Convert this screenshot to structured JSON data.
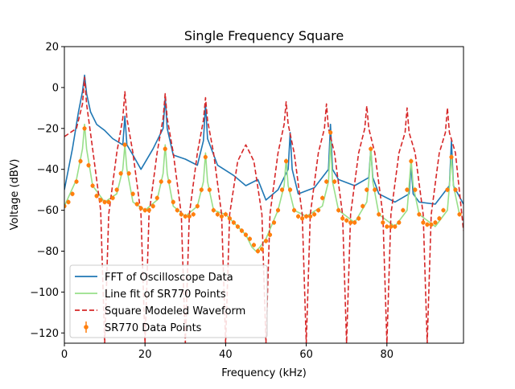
{
  "chart_data": {
    "type": "line",
    "title": "Single Frequency Square",
    "xlabel": "Frequency (kHz)",
    "ylabel": "Voltage (dBV)",
    "xlim": [
      0,
      99
    ],
    "ylim": [
      -125,
      20
    ],
    "x_ticks": [
      0,
      20,
      40,
      60,
      80
    ],
    "x_tick_labels": [
      "0",
      "20",
      "40",
      "60",
      "80"
    ],
    "y_ticks": [
      20,
      0,
      -20,
      -40,
      -60,
      -80,
      -100,
      -120
    ],
    "y_tick_labels": [
      "20",
      "0",
      "−20",
      "−40",
      "−60",
      "−80",
      "−100",
      "−120"
    ],
    "grid": false,
    "legend_position": "lower-left",
    "legend": [
      {
        "label": "FFT of Oscilloscope Data",
        "style": "line",
        "color": "#1f77b4"
      },
      {
        "label": "Line fit of SR770 Points",
        "style": "line",
        "color": "#98df8a"
      },
      {
        "label": "Square Modeled Waveform",
        "style": "dashed",
        "color": "#d62728"
      },
      {
        "label": "SR770 Data Points",
        "style": "errorbar-marker",
        "color": "#ff7f0e"
      }
    ],
    "series": [
      {
        "name": "FFT of Oscilloscope Data",
        "color": "#1f77b4",
        "x": [
          0,
          2,
          3.5,
          4.5,
          5,
          5.5,
          6.5,
          8,
          10,
          12,
          14.5,
          15,
          15.5,
          17,
          19,
          22,
          24.5,
          25,
          25.5,
          27,
          30,
          33,
          34.5,
          35,
          35.5,
          38,
          42,
          45,
          48,
          50,
          53,
          55.5,
          56,
          56.5,
          58,
          62,
          65.5,
          66,
          66.5,
          68,
          72,
          75.5,
          76,
          76.5,
          78,
          82,
          85.5,
          86,
          86.5,
          88,
          92,
          95.5,
          96,
          96.5,
          99
        ],
        "y": [
          -50,
          -30,
          -12,
          -2,
          6,
          -3,
          -12,
          -18,
          -21,
          -25,
          -28,
          -14,
          -28,
          -33,
          -40,
          -30,
          -20,
          -5,
          -20,
          -33,
          -35,
          -38,
          -26,
          -8,
          -25,
          -38,
          -43,
          -48,
          -45,
          -55,
          -50,
          -40,
          -22,
          -40,
          -52,
          -49,
          -40,
          -18,
          -40,
          -45,
          -48,
          -44,
          -30,
          -44,
          -52,
          -56,
          -52,
          -38,
          -52,
          -56,
          -57,
          -48,
          -26,
          -48,
          -57
        ]
      },
      {
        "name": "Line fit of SR770 Points",
        "color": "#98df8a",
        "x": [
          0,
          3,
          4.5,
          5,
          5.5,
          7,
          10,
          13,
          14.5,
          15,
          15.5,
          17,
          20,
          23,
          24.5,
          25,
          25.5,
          27,
          30,
          33,
          34.5,
          35,
          35.5,
          37,
          40,
          43,
          45,
          46.5,
          47.5,
          48.5,
          50,
          53,
          54.5,
          55,
          55.5,
          57,
          60,
          64,
          65.5,
          66,
          66.5,
          68,
          72,
          75,
          75.5,
          76,
          76.5,
          78,
          82,
          85,
          85.5,
          86,
          86.5,
          88,
          92,
          95,
          95.5,
          96,
          96.5,
          98
        ],
        "y": [
          -58,
          -45,
          -30,
          -18,
          -30,
          -48,
          -56,
          -52,
          -40,
          -28,
          -40,
          -56,
          -60,
          -55,
          -42,
          -28,
          -42,
          -58,
          -63,
          -58,
          -46,
          -32,
          -46,
          -60,
          -62,
          -68,
          -72,
          -78,
          -80,
          -78,
          -74,
          -60,
          -48,
          -35,
          -48,
          -60,
          -63,
          -58,
          -46,
          -26,
          -46,
          -60,
          -66,
          -56,
          -46,
          -30,
          -46,
          -62,
          -68,
          -60,
          -48,
          -35,
          -48,
          -62,
          -68,
          -60,
          -48,
          -33,
          -48,
          -62
        ]
      },
      {
        "name": "Square Modeled Waveform",
        "color": "#d62728",
        "x": [
          0,
          3,
          4.5,
          5,
          5.5,
          7,
          9,
          10,
          11,
          13,
          14.5,
          15,
          15.5,
          17,
          19,
          20,
          21,
          23,
          24.5,
          25,
          25.5,
          27,
          29,
          30,
          31,
          33,
          34.5,
          35,
          35.5,
          37,
          39,
          40,
          41,
          43,
          44.5,
          45,
          45.5,
          47,
          49,
          50,
          51,
          53,
          54.5,
          55,
          55.5,
          57,
          59,
          60,
          61,
          63,
          64.5,
          65,
          65.5,
          67,
          69,
          70,
          71,
          73,
          74.5,
          75,
          75.5,
          77,
          79,
          80,
          81,
          83,
          84.5,
          85,
          85.5,
          87,
          89,
          90,
          91,
          93,
          94.5,
          95,
          95.5,
          97,
          99
        ],
        "y": [
          -24,
          -20,
          -8,
          5,
          -8,
          -30,
          -60,
          -125,
          -62,
          -32,
          -15,
          -2,
          -15,
          -32,
          -62,
          -125,
          -62,
          -32,
          -15,
          -3,
          -15,
          -32,
          -62,
          -125,
          -62,
          -32,
          -16,
          -5,
          -16,
          -32,
          -62,
          -125,
          -62,
          -36,
          -30,
          -28,
          -30,
          -36,
          -62,
          -125,
          -62,
          -32,
          -18,
          -7,
          -18,
          -32,
          -62,
          -125,
          -62,
          -32,
          -20,
          -8,
          -20,
          -32,
          -62,
          -125,
          -62,
          -32,
          -20,
          -9,
          -20,
          -32,
          -62,
          -125,
          -62,
          -32,
          -22,
          -10,
          -22,
          -32,
          -62,
          -125,
          -62,
          -32,
          -22,
          -10,
          -22,
          -32,
          -70
        ]
      },
      {
        "name": "SR770 Data Points",
        "color": "#ff7f0e",
        "x": [
          0,
          1,
          2,
          3,
          4,
          5,
          6,
          7,
          8,
          9,
          10,
          11,
          12,
          13,
          14,
          15,
          16,
          17,
          18,
          19,
          20,
          21,
          22,
          23,
          24,
          25,
          26,
          27,
          28,
          29,
          30,
          31,
          32,
          33,
          34,
          35,
          36,
          37,
          38,
          39,
          40,
          41,
          42,
          43,
          44,
          45,
          46,
          47,
          48,
          49,
          50,
          51,
          52,
          53,
          54,
          55,
          56,
          57,
          58,
          59,
          60,
          61,
          62,
          63,
          64,
          65,
          66,
          67,
          68,
          69,
          70,
          71,
          72,
          73,
          74,
          75,
          76,
          77,
          78,
          79,
          80,
          81,
          82,
          83,
          84,
          85,
          86,
          87,
          88,
          89,
          90,
          91,
          92,
          93,
          94,
          95,
          96,
          97,
          98
        ],
        "y": [
          -58,
          -56,
          -52,
          -46,
          -36,
          -20,
          -38,
          -48,
          -53,
          -55,
          -56,
          -56,
          -54,
          -50,
          -42,
          -28,
          -42,
          -52,
          -57,
          -59,
          -60,
          -60,
          -58,
          -54,
          -46,
          -30,
          -46,
          -56,
          -60,
          -62,
          -63,
          -63,
          -62,
          -58,
          -50,
          -34,
          -50,
          -60,
          -62,
          -63,
          -62,
          -64,
          -66,
          -68,
          -70,
          -72,
          -74,
          -77,
          -80,
          -79,
          -75,
          -72,
          -66,
          -60,
          -50,
          -36,
          -50,
          -60,
          -63,
          -64,
          -63,
          -63,
          -62,
          -60,
          -54,
          -46,
          -22,
          -46,
          -60,
          -64,
          -65,
          -66,
          -66,
          -64,
          -58,
          -50,
          -30,
          -50,
          -62,
          -66,
          -68,
          -68,
          -68,
          -66,
          -60,
          -50,
          -36,
          -50,
          -62,
          -66,
          -67,
          -67,
          -66,
          -64,
          -60,
          -50,
          -34,
          -50,
          -62
        ]
      }
    ]
  }
}
